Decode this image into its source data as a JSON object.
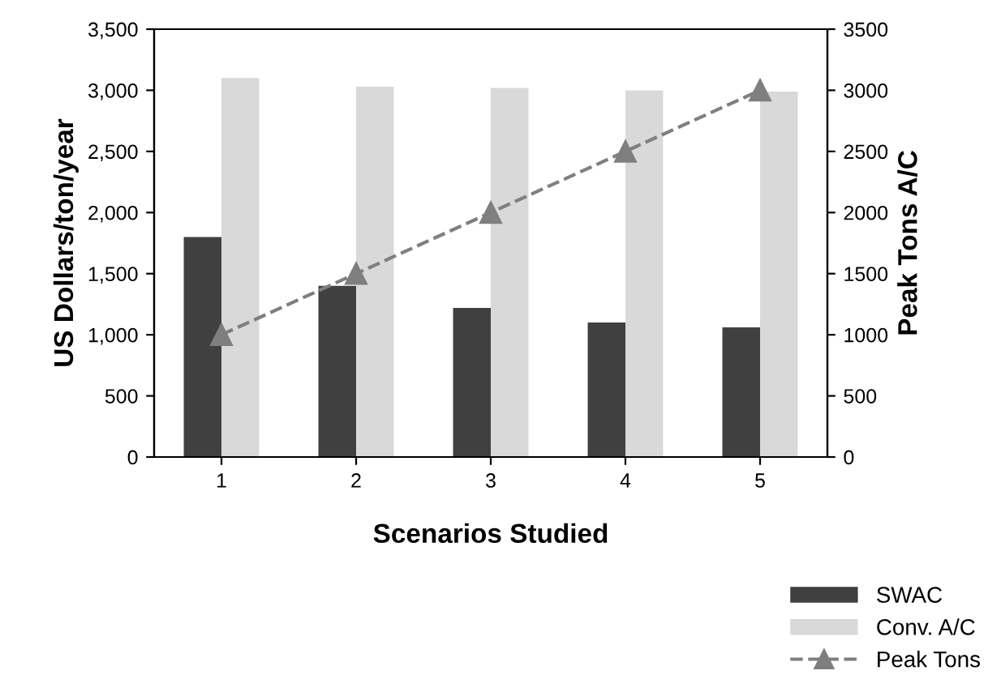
{
  "chart_data": {
    "type": "bar",
    "xlabel": "Scenarios Studied",
    "ylabel": "US Dollars/ton/year",
    "y2label": "Peak Tons A/C",
    "categories": [
      "1",
      "2",
      "3",
      "4",
      "5"
    ],
    "series": [
      {
        "name": "SWAC",
        "color": "#404040",
        "values": [
          1800,
          1400,
          1220,
          1100,
          1060
        ]
      },
      {
        "name": "Conv. A/C",
        "color": "#d9d9d9",
        "values": [
          3100,
          3030,
          3020,
          3000,
          2990
        ]
      },
      {
        "name": "Peak Tons",
        "type": "line",
        "axis": "y2",
        "color": "#7f7f7f",
        "marker": "triangle",
        "line_style": "dashed",
        "values": [
          1000,
          1500,
          2000,
          2500,
          3000
        ]
      }
    ],
    "ylim": [
      0,
      3500
    ],
    "yticks": [
      {
        "value": 0,
        "label": "0"
      },
      {
        "value": 500,
        "label": "500"
      },
      {
        "value": 1000,
        "label": "1,000"
      },
      {
        "value": 1500,
        "label": "1,500"
      },
      {
        "value": 2000,
        "label": "2,000"
      },
      {
        "value": 2500,
        "label": "2,500"
      },
      {
        "value": 3000,
        "label": "3,000"
      },
      {
        "value": 3500,
        "label": "3,500"
      }
    ],
    "y2lim": [
      0,
      3500
    ],
    "y2ticks": [
      0,
      500,
      1000,
      1500,
      2000,
      2500,
      3000,
      3500
    ],
    "grid": false,
    "legend": "bottom right"
  }
}
